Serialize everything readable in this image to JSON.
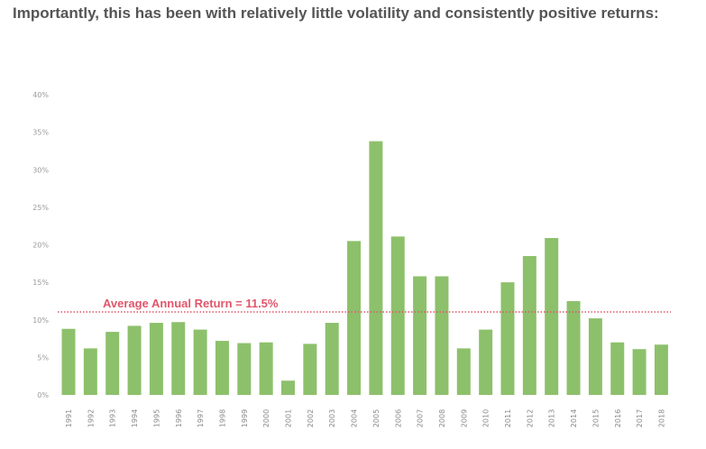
{
  "intro_text": "Importantly, this has been with relatively little volatility and consistently positive returns:",
  "chart_data": {
    "type": "bar",
    "title": "",
    "xlabel": "",
    "ylabel": "",
    "ylim": [
      0,
      40
    ],
    "yticks": [
      "0%",
      "5%",
      "10%",
      "15%",
      "20%",
      "25%",
      "30%",
      "35%",
      "40%"
    ],
    "grid": false,
    "categories": [
      "1991",
      "1992",
      "1993",
      "1994",
      "1995",
      "1996",
      "1997",
      "1998",
      "1999",
      "2000",
      "2001",
      "2002",
      "2003",
      "2004",
      "2005",
      "2006",
      "2007",
      "2008",
      "2009",
      "2010",
      "2011",
      "2012",
      "2013",
      "2014",
      "2015",
      "2016",
      "2017",
      "2018"
    ],
    "values": [
      8.8,
      6.2,
      8.4,
      9.2,
      9.6,
      9.7,
      8.7,
      7.2,
      6.9,
      7.0,
      1.9,
      6.8,
      9.6,
      20.5,
      33.8,
      21.1,
      15.8,
      15.8,
      6.2,
      8.7,
      15.0,
      18.5,
      20.9,
      12.5,
      10.2,
      7.0,
      6.1,
      6.7
    ],
    "bar_color": "#8dc06b",
    "reference_line": {
      "value": 11.5,
      "label": "Average Annual Return = 11.5%",
      "color": "#e0566a"
    }
  }
}
